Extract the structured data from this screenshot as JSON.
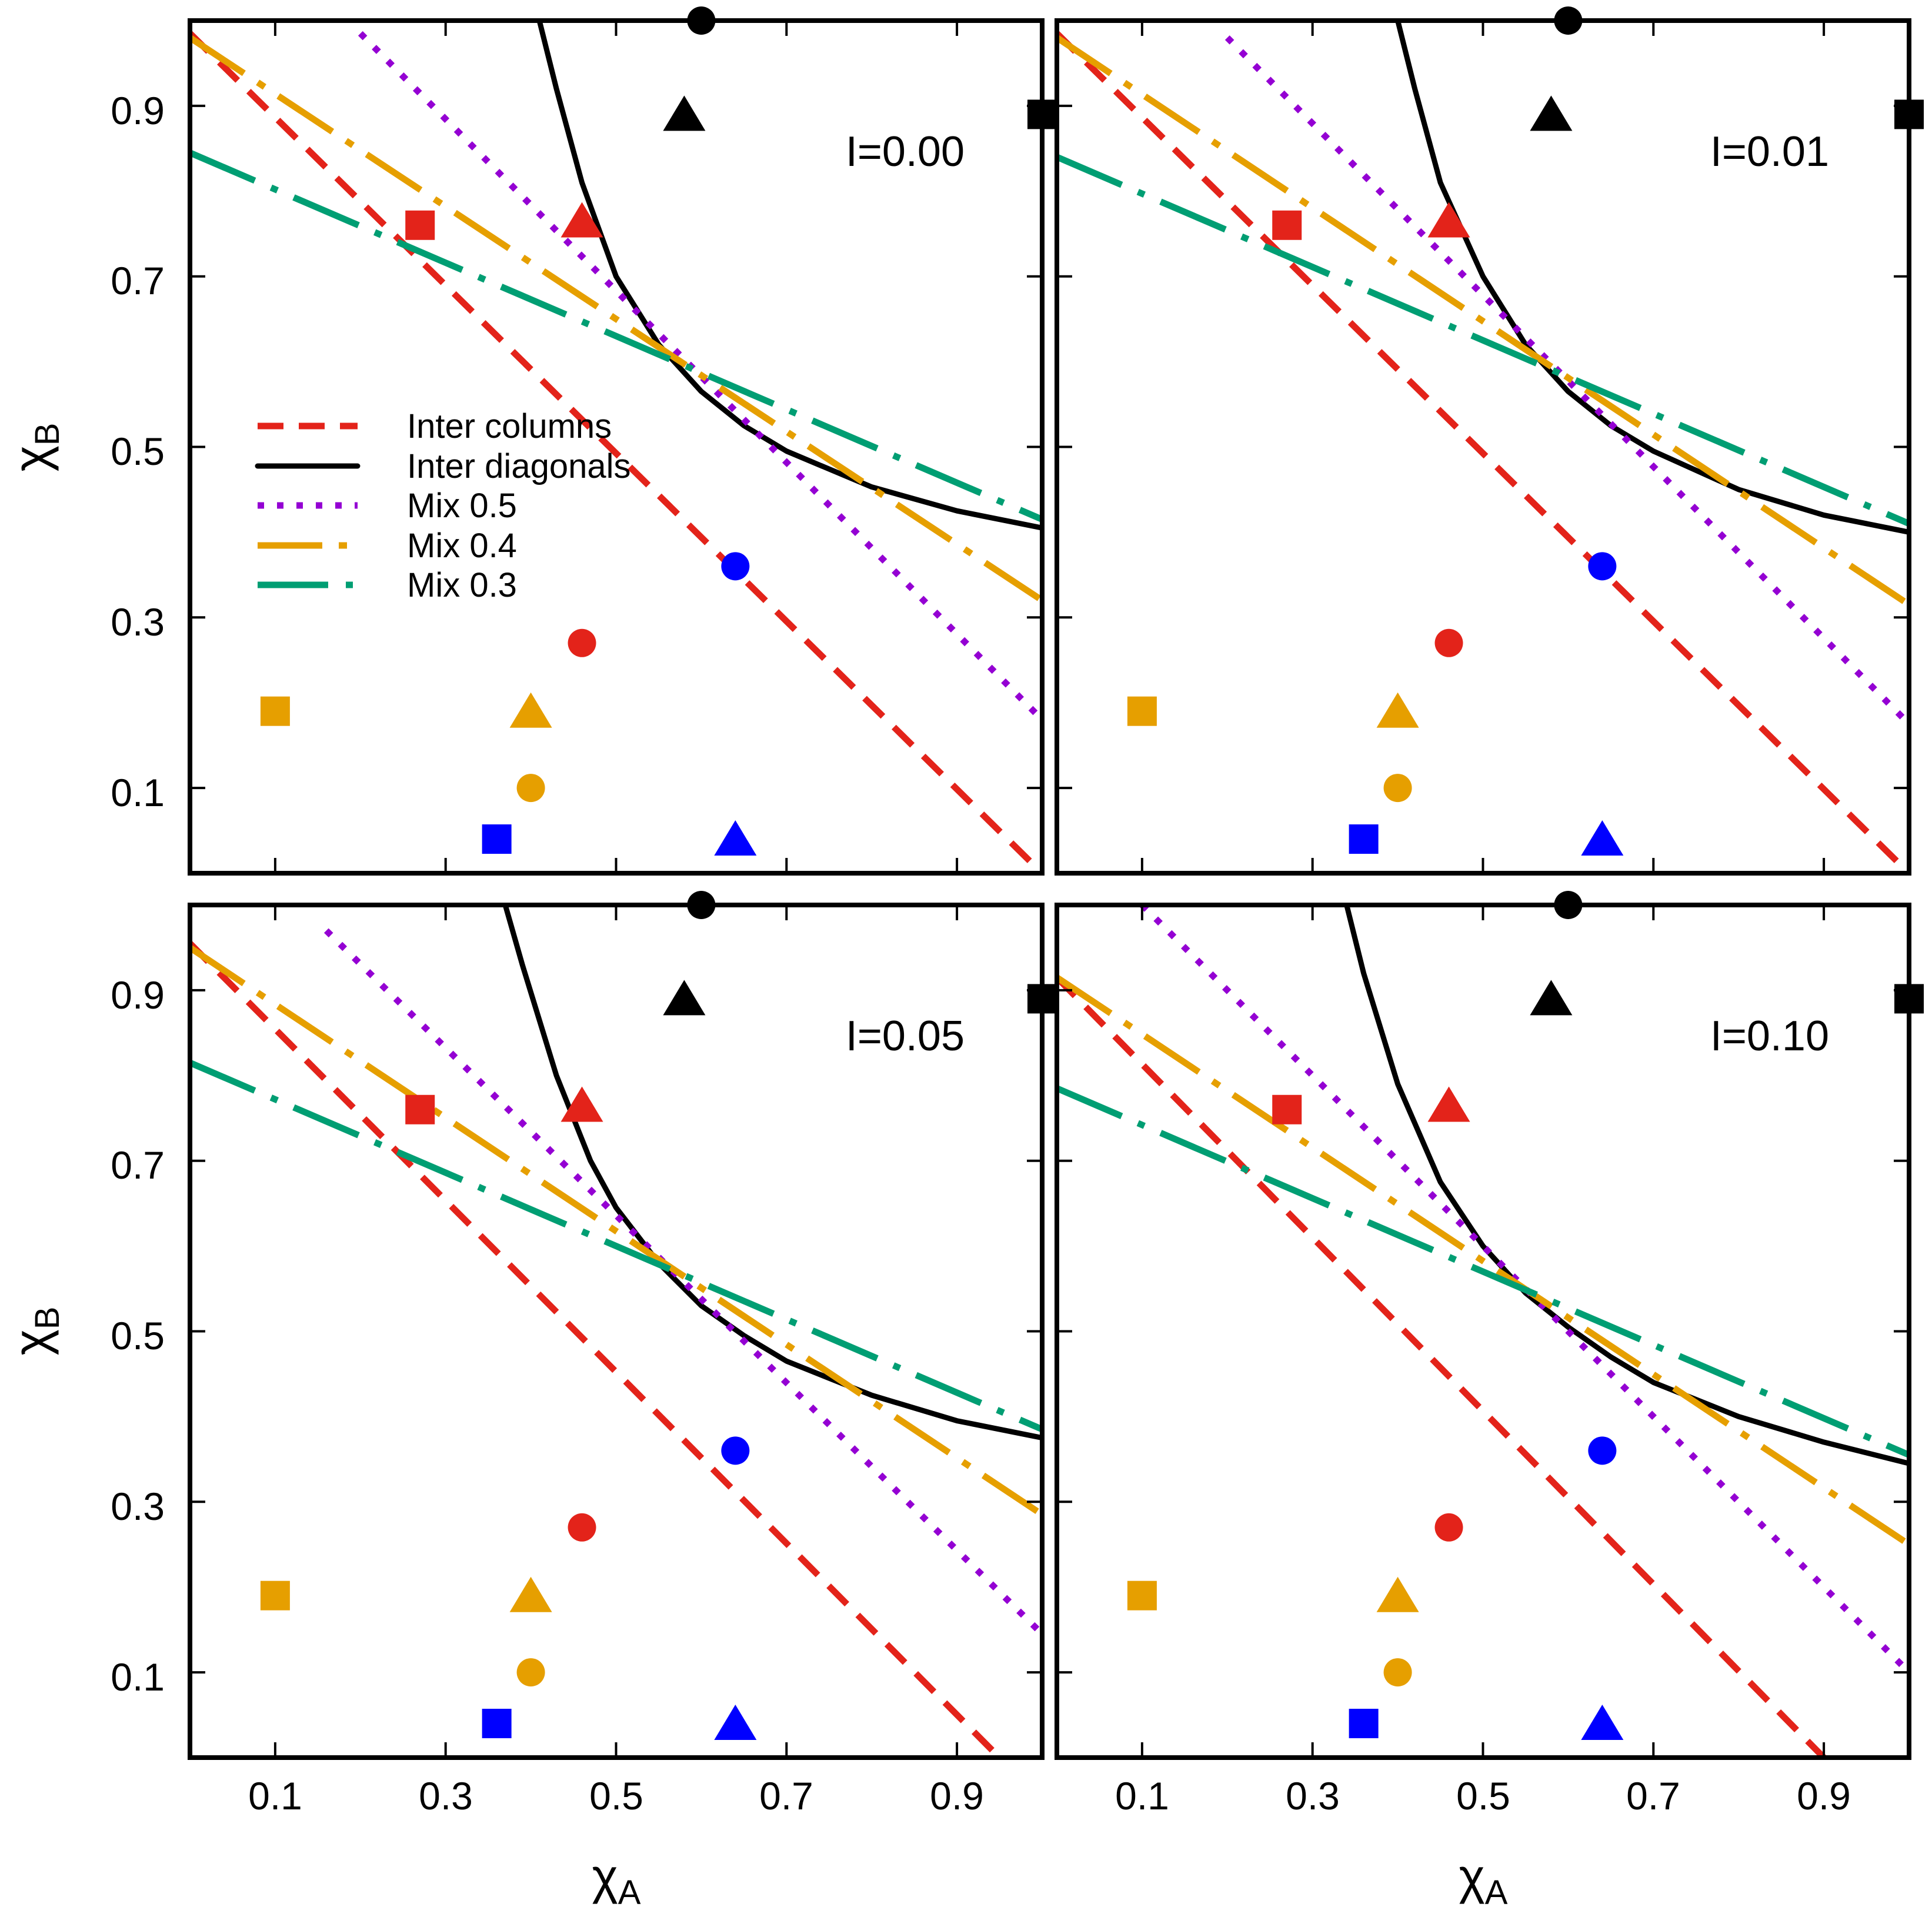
{
  "figure": {
    "xlabel": "χ",
    "xlabel_sub": "A",
    "ylabel": "χ",
    "ylabel_sub": "B",
    "xticks": [
      "0.1",
      "0.3",
      "0.5",
      "0.7",
      "0.9"
    ],
    "yticks": [
      "0.1",
      "0.3",
      "0.5",
      "0.7",
      "0.9"
    ],
    "colors": {
      "red": "#e3231a",
      "black": "#000000",
      "purple": "#9400d3",
      "orange": "#e69f00",
      "green": "#009e73",
      "blue": "#0000ff"
    }
  },
  "legend": [
    {
      "label": "Inter columns",
      "series": "Inter columns",
      "color": "#e3231a",
      "style": "dashed"
    },
    {
      "label": "Inter diagonals",
      "series": "Inter diagonals",
      "color": "#000000",
      "style": "solid"
    },
    {
      "label": "Mix 0.5",
      "series": "Mix 0.5",
      "color": "#9400d3",
      "style": "dotted"
    },
    {
      "label": "Mix 0.4",
      "series": "Mix 0.4",
      "color": "#e69f00",
      "style": "long-dash-dot"
    },
    {
      "label": "Mix 0.3",
      "series": "Mix 0.3",
      "color": "#009e73",
      "style": "dash-dot"
    }
  ],
  "chart_data": [
    {
      "type": "line",
      "panel_label": "I=0.00",
      "xlim": [
        0,
        1
      ],
      "ylim": [
        0,
        1
      ],
      "series": [
        {
          "name": "Inter columns",
          "x": [
            0,
            1
          ],
          "y": [
            0.985,
            0.0
          ]
        },
        {
          "name": "Inter diagonals",
          "x": [
            0.41,
            0.43,
            0.46,
            0.5,
            0.55,
            0.6,
            0.65,
            0.7,
            0.8,
            0.9,
            1.0
          ],
          "y": [
            1.0,
            0.92,
            0.81,
            0.7,
            0.62,
            0.565,
            0.525,
            0.495,
            0.453,
            0.425,
            0.405
          ]
        },
        {
          "name": "Mix 0.5",
          "x": [
            0.2,
            1
          ],
          "y": [
            0.985,
            0.18
          ]
        },
        {
          "name": "Mix 0.4",
          "x": [
            0,
            1
          ],
          "y": [
            0.98,
            0.32
          ]
        },
        {
          "name": "Mix 0.3",
          "x": [
            0,
            1
          ],
          "y": [
            0.845,
            0.415
          ]
        }
      ]
    },
    {
      "type": "line",
      "panel_label": "I=0.01",
      "xlim": [
        0,
        1
      ],
      "ylim": [
        0,
        1
      ],
      "series": [
        {
          "name": "Inter columns",
          "x": [
            0,
            1
          ],
          "y": [
            0.985,
            0.0
          ]
        },
        {
          "name": "Inter diagonals",
          "x": [
            0.4,
            0.42,
            0.45,
            0.5,
            0.55,
            0.6,
            0.65,
            0.7,
            0.8,
            0.9,
            1.0
          ],
          "y": [
            1.0,
            0.92,
            0.81,
            0.7,
            0.62,
            0.565,
            0.525,
            0.495,
            0.45,
            0.42,
            0.4
          ]
        },
        {
          "name": "Mix 0.5",
          "x": [
            0.2,
            1
          ],
          "y": [
            0.98,
            0.175
          ]
        },
        {
          "name": "Mix 0.4",
          "x": [
            0,
            1
          ],
          "y": [
            0.98,
            0.315
          ]
        },
        {
          "name": "Mix 0.3",
          "x": [
            0,
            1
          ],
          "y": [
            0.84,
            0.41
          ]
        }
      ]
    },
    {
      "type": "line",
      "panel_label": "I=0.05",
      "xlim": [
        0,
        1
      ],
      "ylim": [
        0,
        1
      ],
      "series": [
        {
          "name": "Inter columns",
          "x": [
            0,
            0.95
          ],
          "y": [
            0.955,
            0.0
          ]
        },
        {
          "name": "Inter diagonals",
          "x": [
            0.37,
            0.39,
            0.43,
            0.47,
            0.5,
            0.55,
            0.6,
            0.65,
            0.7,
            0.8,
            0.9,
            1.0
          ],
          "y": [
            1.0,
            0.93,
            0.8,
            0.7,
            0.645,
            0.58,
            0.53,
            0.495,
            0.465,
            0.425,
            0.395,
            0.375
          ]
        },
        {
          "name": "Mix 0.5",
          "x": [
            0.16,
            1
          ],
          "y": [
            0.97,
            0.145
          ]
        },
        {
          "name": "Mix 0.4",
          "x": [
            0,
            1
          ],
          "y": [
            0.95,
            0.285
          ]
        },
        {
          "name": "Mix 0.3",
          "x": [
            0,
            1
          ],
          "y": [
            0.815,
            0.385
          ]
        }
      ]
    },
    {
      "type": "line",
      "panel_label": "I=0.10",
      "xlim": [
        0,
        1
      ],
      "ylim": [
        0,
        1
      ],
      "series": [
        {
          "name": "Inter columns",
          "x": [
            0,
            0.9
          ],
          "y": [
            0.915,
            0.0
          ]
        },
        {
          "name": "Inter diagonals",
          "x": [
            0.34,
            0.36,
            0.4,
            0.45,
            0.5,
            0.55,
            0.6,
            0.65,
            0.7,
            0.8,
            0.9,
            1.0
          ],
          "y": [
            1.0,
            0.92,
            0.79,
            0.675,
            0.6,
            0.545,
            0.505,
            0.47,
            0.44,
            0.4,
            0.37,
            0.345
          ]
        },
        {
          "name": "Mix 0.5",
          "x": [
            0.1,
            1
          ],
          "y": [
            1.0,
            0.1
          ]
        },
        {
          "name": "Mix 0.4",
          "x": [
            0,
            1
          ],
          "y": [
            0.915,
            0.25
          ]
        },
        {
          "name": "Mix 0.3",
          "x": [
            0,
            1
          ],
          "y": [
            0.785,
            0.355
          ]
        }
      ]
    }
  ],
  "markers": [
    {
      "x": 0.6,
      "y": 1.0,
      "shape": "circle",
      "color": "#000000"
    },
    {
      "x": 0.58,
      "y": 0.89,
      "shape": "triangle",
      "color": "#000000"
    },
    {
      "x": 1.0,
      "y": 0.89,
      "shape": "square",
      "color": "#000000"
    },
    {
      "x": 0.27,
      "y": 0.76,
      "shape": "square",
      "color": "#e3231a"
    },
    {
      "x": 0.46,
      "y": 0.765,
      "shape": "triangle",
      "color": "#e3231a"
    },
    {
      "x": 0.46,
      "y": 0.27,
      "shape": "circle",
      "color": "#e3231a"
    },
    {
      "x": 0.64,
      "y": 0.36,
      "shape": "circle",
      "color": "#0000ff"
    },
    {
      "x": 0.36,
      "y": 0.04,
      "shape": "square",
      "color": "#0000ff"
    },
    {
      "x": 0.64,
      "y": 0.04,
      "shape": "triangle",
      "color": "#0000ff"
    },
    {
      "x": 0.1,
      "y": 0.19,
      "shape": "square",
      "color": "#e69f00"
    },
    {
      "x": 0.4,
      "y": 0.19,
      "shape": "triangle",
      "color": "#e69f00"
    },
    {
      "x": 0.4,
      "y": 0.1,
      "shape": "circle",
      "color": "#e69f00"
    }
  ]
}
